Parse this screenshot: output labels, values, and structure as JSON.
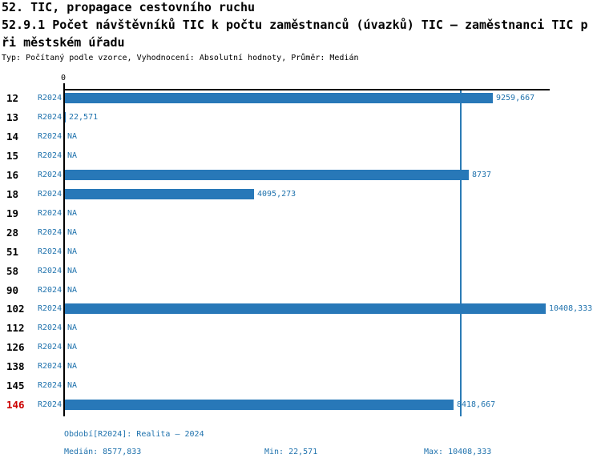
{
  "title": {
    "line1": "52. TIC, propagace cestovního ruchu",
    "line2": "52.9.1 Počet návštěvníků TIC k počtu zaměstnanců (úvazků) TIC – zaměstnanci TIC p",
    "line3": "ři městském úřadu",
    "meta": "Typ: Počítaný podle vzorce, Vyhodnocení: Absolutní hodnoty, Průměr: Medián"
  },
  "chart_data": {
    "type": "bar",
    "orientation": "horizontal",
    "title": "52.9.1 Počet návštěvníků TIC k počtu zaměstnanců (úvazků) TIC – zaměstnanci TIC při městském úřadu",
    "axis_zero_label": "0",
    "categories": [
      "12",
      "13",
      "14",
      "15",
      "16",
      "18",
      "19",
      "28",
      "51",
      "58",
      "90",
      "102",
      "112",
      "126",
      "138",
      "145",
      "146"
    ],
    "series": [
      {
        "name": "R2024",
        "values": [
          9259.667,
          22.571,
          null,
          null,
          8737,
          4095.273,
          null,
          null,
          null,
          null,
          null,
          10408.333,
          null,
          null,
          null,
          null,
          8418.667
        ],
        "labels": [
          "9259,667",
          "22,571",
          null,
          null,
          "8737",
          "4095,273",
          null,
          null,
          null,
          null,
          null,
          "10408,333",
          null,
          null,
          null,
          null,
          "8418,667"
        ]
      }
    ],
    "na_label": "NA",
    "median": 8577.833,
    "min": 22.571,
    "max": 10408.333,
    "xlim": [
      0,
      10408.333
    ],
    "highlight_category": "146",
    "grid": false,
    "legend": false
  },
  "footer": {
    "period_label": "Období[R2024]: Realita – 2024",
    "median_label": "Medián: 8577,833",
    "min_label": "Min: 22,571",
    "max_label": "Max: 10408,333"
  },
  "colors": {
    "bar": "#2878b8",
    "label_blue": "#1f72ad",
    "median_line": "#2b7bb5",
    "highlight_red": "#cc0000",
    "axis_black": "#000000",
    "background": "#ffffff"
  }
}
